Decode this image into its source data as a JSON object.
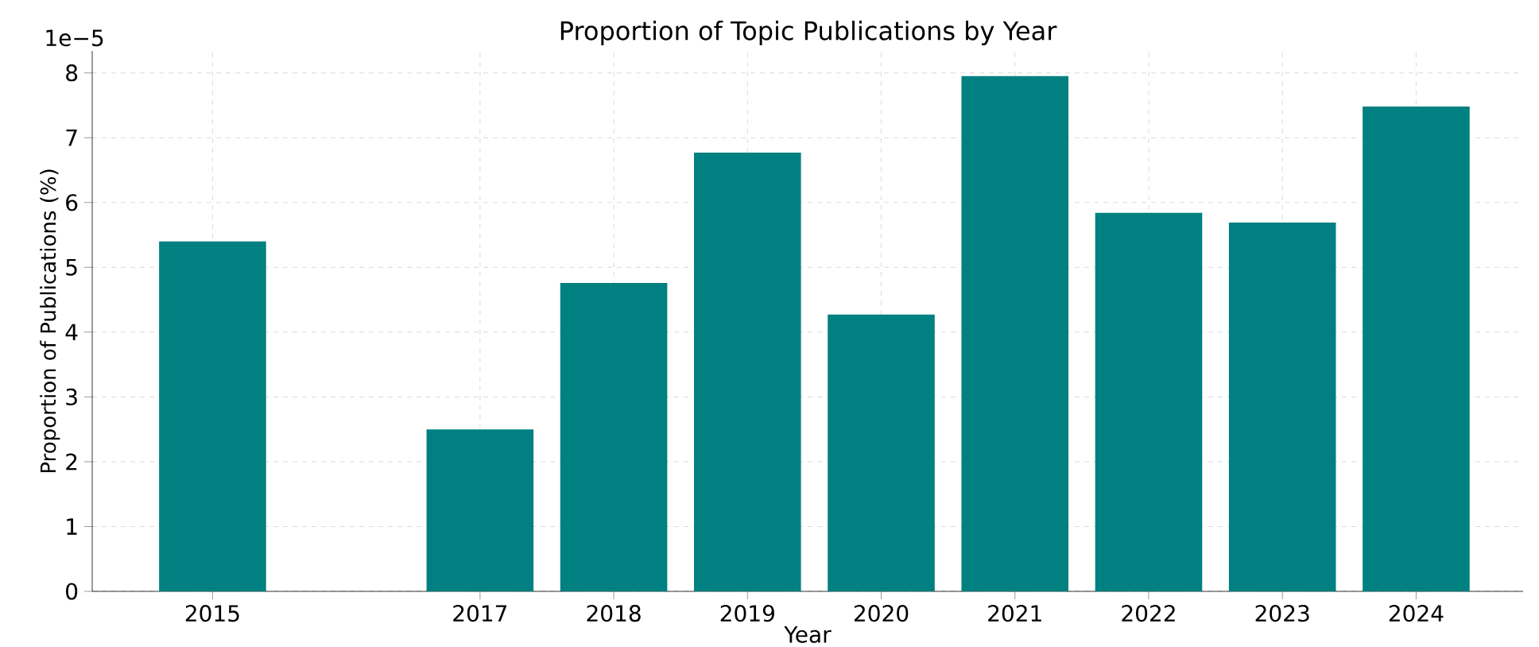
{
  "chart_data": {
    "type": "bar",
    "title": "Proportion of Topic Publications by Year",
    "xlabel": "Year",
    "ylabel": "Proportion of Publications (%)",
    "x": [
      2015,
      2017,
      2018,
      2019,
      2020,
      2021,
      2022,
      2023,
      2024
    ],
    "values": [
      5.4,
      2.5,
      4.76,
      6.77,
      4.27,
      7.95,
      5.84,
      5.69,
      7.48
    ],
    "color": "#008080",
    "xlim": [
      2014.1,
      2024.8
    ],
    "xticks": [
      2015,
      2017,
      2018,
      2019,
      2020,
      2021,
      2022,
      2023,
      2024
    ],
    "ylim": [
      0,
      8.34
    ],
    "yticks": [
      0,
      1,
      2,
      3,
      4,
      5,
      6,
      7,
      8
    ],
    "annotations": [
      "1e−5"
    ],
    "grid": true
  }
}
